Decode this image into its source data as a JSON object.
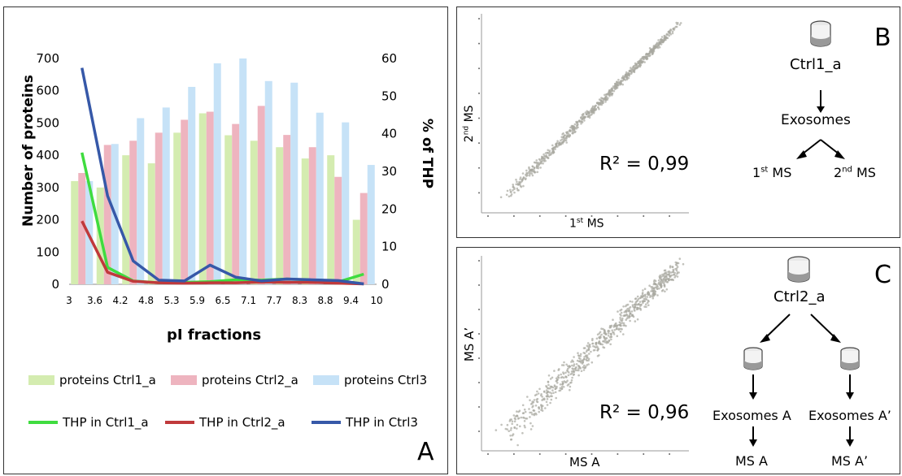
{
  "chart_data": [
    {
      "panel_letter": "A",
      "type": "bar",
      "categories": [
        "3",
        "3.6",
        "4.2",
        "4.8",
        "5.3",
        "5.9",
        "6.5",
        "7.1",
        "7.7",
        "8.3",
        "8.8",
        "9.4",
        "10"
      ],
      "xlabel": "pI fractions",
      "ylabel": "Number of proteins",
      "ylabel_right": "% of THP",
      "ylim": [
        0,
        700
      ],
      "yticks": [
        0,
        100,
        200,
        300,
        400,
        500,
        600,
        700
      ],
      "ylim_right": [
        0,
        60
      ],
      "yticks_right": [
        0,
        10,
        20,
        30,
        40,
        50,
        60
      ],
      "bar_series": [
        {
          "name": "proteins Ctrl1_a",
          "color": "#d4ecb0",
          "values": [
            320,
            300,
            400,
            375,
            470,
            530,
            462,
            445,
            425,
            390,
            400,
            200
          ]
        },
        {
          "name": "proteins Ctrl2_a",
          "color": "#eeb4bf",
          "values": [
            345,
            432,
            445,
            470,
            510,
            535,
            497,
            553,
            463,
            425,
            333,
            283
          ]
        },
        {
          "name": "proteins Ctrl3",
          "color": "#c6e2f7",
          "values": [
            320,
            435,
            515,
            548,
            612,
            685,
            700,
            630,
            625,
            532,
            502,
            370
          ]
        }
      ],
      "line_series": [
        {
          "name": "THP in Ctrl1_a",
          "color": "#3fdc3f",
          "values": [
            35,
            4.5,
            0.9,
            0.4,
            0.5,
            0.7,
            1.2,
            1.1,
            1.4,
            1.1,
            0.6,
            2.7
          ]
        },
        {
          "name": "THP in Ctrl2_a",
          "color": "#c0393b",
          "values": [
            16.8,
            3.2,
            0.8,
            0.4,
            0.3,
            0.4,
            0.4,
            0.6,
            0.5,
            0.5,
            0.3,
            0.1
          ]
        },
        {
          "name": "THP in Ctrl3",
          "color": "#3658a8",
          "values": [
            57.5,
            23.5,
            6.2,
            1.1,
            0.9,
            5.1,
            1.9,
            0.9,
            1.4,
            1.2,
            1.0,
            0.1
          ]
        }
      ],
      "legend": "bottom"
    },
    {
      "panel_letter": "B",
      "type": "scatter",
      "xlabel_base": "1",
      "xlabel_sup": "st",
      "xlabel_tail": " MS",
      "ylabel_base": "2",
      "ylabel_sup": "nd",
      "ylabel_tail": " MS",
      "r2": "R² = 0,99",
      "diagram": {
        "sample": "Ctrl1_a",
        "middle": "Exosomes",
        "left_base": "1",
        "left_sup": "st",
        "left_tail": " MS",
        "right_base": "2",
        "right_sup": "nd",
        "right_tail": " MS"
      }
    },
    {
      "panel_letter": "C",
      "type": "scatter",
      "xlabel": "MS A",
      "ylabel": "MS A’",
      "r2": "R² = 0,96",
      "diagram": {
        "sample": "Ctrl2_a",
        "left_mid": "Exosomes A",
        "right_mid": "Exosomes A’",
        "left_bottom": "MS A",
        "right_bottom": "MS A’"
      }
    }
  ]
}
